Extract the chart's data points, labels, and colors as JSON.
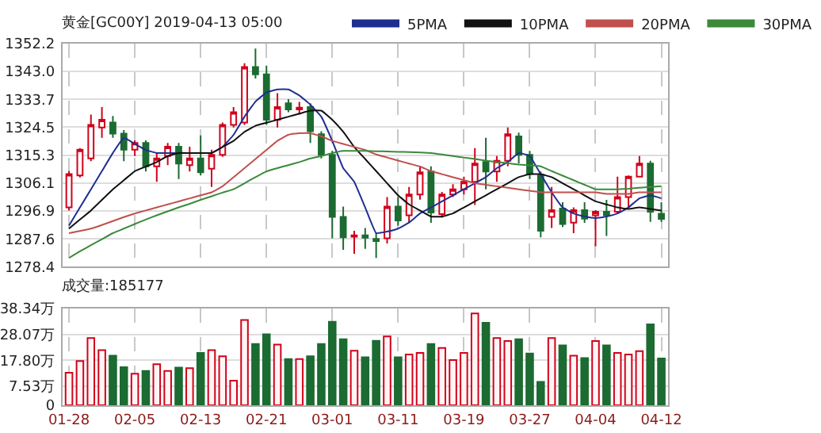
{
  "chart_data": [
    {
      "type": "candlestick",
      "title": "黄金[GC00Y] 2019-04-13 05:00",
      "categories": [
        null,
        null,
        null,
        null,
        null,
        null,
        null,
        null,
        null,
        null,
        null,
        null,
        null,
        null,
        null,
        null,
        null,
        null,
        null,
        null,
        null,
        null,
        null,
        null,
        null,
        null,
        null,
        null,
        null,
        null,
        null,
        null,
        null,
        null,
        null,
        null,
        null,
        null,
        null,
        null,
        null,
        null,
        null,
        null,
        null,
        null,
        null,
        null,
        null,
        null,
        null,
        null,
        null,
        null,
        null
      ],
      "ohlc": [
        [
          1298,
          1310,
          1297,
          1309
        ],
        [
          1308.6,
          1317.6,
          1307.9,
          1317.1
        ],
        [
          1314.2,
          1328.7,
          1313.3,
          1325.3
        ],
        [
          1324.4,
          1331.2,
          1321,
          1327
        ],
        [
          1326.1,
          1328.2,
          1321,
          1322.4
        ],
        [
          1322.4,
          1323.6,
          1313.3,
          1317.1
        ],
        [
          1317.1,
          1320.2,
          1315,
          1319.3
        ],
        [
          1319.3,
          1320.2,
          1309.9,
          1311.6
        ],
        [
          1311.6,
          1315.9,
          1306.5,
          1314.2
        ],
        [
          1315,
          1319.3,
          1312,
          1318.1
        ],
        [
          1318.1,
          1319.3,
          1307.4,
          1312.5
        ],
        [
          1312,
          1318.1,
          1309.9,
          1314.2
        ],
        [
          1314.2,
          1321.8,
          1308.6,
          1309.6
        ],
        [
          1310.8,
          1317.1,
          1304.8,
          1315.4
        ],
        [
          1315.4,
          1326.1,
          1314.7,
          1325.3
        ],
        [
          1325.3,
          1331.2,
          1324.4,
          1329.5
        ],
        [
          1326.1,
          1345.7,
          1325.3,
          1344.4
        ],
        [
          1344.4,
          1350.5,
          1340.6,
          1342
        ],
        [
          1342,
          1344.9,
          1325.3,
          1327
        ],
        [
          1327,
          1335.8,
          1324.4,
          1331.2
        ],
        [
          1332.4,
          1333.8,
          1329.5,
          1330.4
        ],
        [
          1330.4,
          1332.9,
          1328.7,
          1331
        ],
        [
          1331.2,
          1332.4,
          1319.3,
          1323.2
        ],
        [
          1322.2,
          1323.2,
          1314.2,
          1315.4
        ],
        [
          1315.4,
          1316.7,
          1287.8,
          1294.9
        ],
        [
          1294.9,
          1298.3,
          1284,
          1288.1
        ],
        [
          1288.3,
          1290.3,
          1282.7,
          1288.8
        ],
        [
          1288.8,
          1291.2,
          1284.3,
          1288
        ],
        [
          1287.6,
          1289.5,
          1281.3,
          1286.9
        ],
        [
          1287.8,
          1301.4,
          1286.1,
          1298.3
        ],
        [
          1298.3,
          1301.4,
          1292,
          1293.7
        ],
        [
          1295.4,
          1304.8,
          1292.9,
          1302.3
        ],
        [
          1302.3,
          1311.6,
          1300.6,
          1309.6
        ],
        [
          1309.9,
          1311.6,
          1292.9,
          1296.3
        ],
        [
          1295.8,
          1303.1,
          1294.6,
          1302.3
        ],
        [
          1302.3,
          1305.7,
          1301.4,
          1304
        ],
        [
          1304,
          1308.2,
          1302.3,
          1306.5
        ],
        [
          1306.5,
          1317.6,
          1298.8,
          1312.5
        ],
        [
          1313,
          1321,
          1304,
          1309.9
        ],
        [
          1309.9,
          1315,
          1306.5,
          1313.4
        ],
        [
          1313.4,
          1324.4,
          1311.6,
          1322.2
        ],
        [
          1321.5,
          1322.7,
          1312.5,
          1315.4
        ],
        [
          1315.4,
          1316.7,
          1307.4,
          1309.1
        ],
        [
          1308.6,
          1309.9,
          1288.1,
          1290.3
        ],
        [
          1294.9,
          1304.8,
          1291.2,
          1297.1
        ],
        [
          1297.6,
          1299.7,
          1291.5,
          1292.5
        ],
        [
          1293,
          1298,
          1289.5,
          1297.1
        ],
        [
          1297.1,
          1299.7,
          1292.9,
          1294.3
        ],
        [
          1295.4,
          1297.1,
          1285.2,
          1296.6
        ],
        [
          1296.6,
          1300.5,
          1288.6,
          1295.4
        ],
        [
          1296.6,
          1308.2,
          1295.9,
          1301.4
        ],
        [
          1301.4,
          1308.6,
          1298,
          1308.2
        ],
        [
          1308.2,
          1315,
          1307.9,
          1312.5
        ],
        [
          1312.5,
          1313.4,
          1293.2,
          1296.6
        ],
        [
          1295.9,
          1299.7,
          1293.2,
          1294.2
        ]
      ],
      "colors": [
        "#d0021b",
        "#d0021b",
        "#d0021b",
        "#d0021b",
        "#1c6b32",
        "#1c6b32",
        "#d0021b",
        "#1c6b32",
        "#d0021b",
        "#d0021b",
        "#1c6b32",
        "#d0021b",
        "#1c6b32",
        "#d0021b",
        "#d0021b",
        "#d0021b",
        "#d0021b",
        "#1c6b32",
        "#1c6b32",
        "#d0021b",
        "#1c6b32",
        "#d0021b",
        "#1c6b32",
        "#1c6b32",
        "#1c6b32",
        "#1c6b32",
        "#d0021b",
        "#1c6b32",
        "#1c6b32",
        "#d0021b",
        "#1c6b32",
        "#d0021b",
        "#d0021b",
        "#1c6b32",
        "#d0021b",
        "#d0021b",
        "#d0021b",
        "#d0021b",
        "#1c6b32",
        "#d0021b",
        "#d0021b",
        "#1c6b32",
        "#1c6b32",
        "#1c6b32",
        "#d0021b",
        "#1c6b32",
        "#d0021b",
        "#1c6b32",
        "#d0021b",
        "#1c6b32",
        "#d0021b",
        "#d0021b",
        "#d0021b",
        "#1c6b32",
        "#1c6b32"
      ],
      "series": [
        {
          "type": "line",
          "name": "5PMA",
          "color": "#1f2f8f",
          "values": [
            1292,
            1298,
            1304,
            1310,
            1316,
            1321,
            1319,
            1317,
            1316,
            1316,
            1316,
            1316,
            1316,
            1316,
            1318,
            1322,
            1328,
            1333,
            1336,
            1337,
            1337,
            1335,
            1332,
            1328,
            1320,
            1311,
            1306.5,
            1298,
            1289.5,
            1290,
            1291,
            1293,
            1296,
            1298,
            1300,
            1302,
            1304,
            1306,
            1308,
            1311,
            1313,
            1316,
            1315,
            1309,
            1303,
            1298,
            1296,
            1295,
            1294.5,
            1295,
            1296,
            1298,
            1301,
            1302,
            1301
          ]
        },
        {
          "type": "line",
          "name": "10PMA",
          "color": "#111111",
          "values": [
            1291,
            1294,
            1297,
            1300.5,
            1304,
            1307,
            1310,
            1311.5,
            1313,
            1315,
            1316,
            1316,
            1316,
            1316,
            1318,
            1320,
            1323,
            1325,
            1326,
            1327,
            1328,
            1329,
            1330,
            1330,
            1327,
            1323,
            1318,
            1314,
            1310,
            1306,
            1302,
            1299,
            1297,
            1295,
            1295,
            1296,
            1298,
            1300,
            1302,
            1304,
            1306,
            1308,
            1309,
            1309,
            1308,
            1306,
            1304,
            1302,
            1300,
            1299,
            1298,
            1297.5,
            1298,
            1297.5,
            1297
          ]
        },
        {
          "type": "line",
          "name": "20PMA",
          "color": "#c0504d",
          "values": [
            1289.5,
            1290.2,
            1291,
            1292.2,
            1293.5,
            1294.8,
            1296,
            1297,
            1298,
            1299,
            1300,
            1301,
            1302,
            1303,
            1305,
            1308,
            1311,
            1314,
            1317,
            1320,
            1322,
            1322.5,
            1322.5,
            1321.5,
            1320,
            1319,
            1318,
            1317,
            1315.5,
            1314.5,
            1313.5,
            1312.5,
            1311.5,
            1310,
            1309,
            1308,
            1307,
            1306,
            1305.5,
            1305,
            1304.5,
            1304,
            1303.5,
            1303,
            1303,
            1303,
            1303,
            1303,
            1303,
            1302.5,
            1302.5,
            1302.5,
            1303,
            1303,
            1303
          ]
        },
        {
          "type": "line",
          "name": "30PMA",
          "color": "#3a8a3a",
          "values": [
            1281.3,
            1283.5,
            1285.5,
            1287.5,
            1289.5,
            1291,
            1292.5,
            1294,
            1295.4,
            1296.7,
            1298,
            1299.2,
            1300.5,
            1301.7,
            1302.9,
            1304,
            1306,
            1308,
            1309.9,
            1311,
            1312,
            1313,
            1314.2,
            1315,
            1316,
            1316.7,
            1316.7,
            1316.7,
            1316.6,
            1316.5,
            1316.4,
            1316.3,
            1316.2,
            1316,
            1315.5,
            1315,
            1314.5,
            1314,
            1313.5,
            1313,
            1312.6,
            1312.2,
            1311.9,
            1311.6,
            1310,
            1308.5,
            1307,
            1305.5,
            1304,
            1304,
            1304,
            1304.2,
            1304.5,
            1304.8,
            1305
          ]
        }
      ],
      "ylim": [
        1278.4,
        1352.2
      ],
      "yticks": [
        1278.4,
        1287.6,
        1296.9,
        1306.1,
        1315.3,
        1324.5,
        1333.7,
        {
          "value": 1343,
          "label": "1343.0"
        },
        1352.2
      ],
      "grid": true,
      "legend": "top",
      "tick_labels": "y"
    },
    {
      "type": "bar",
      "title": "成交量:185177",
      "categories": [
        "01-28",
        null,
        null,
        null,
        null,
        null,
        "02-05",
        null,
        null,
        null,
        null,
        null,
        "02-13",
        null,
        null,
        null,
        null,
        null,
        "02-21",
        null,
        null,
        null,
        null,
        null,
        "03-01",
        null,
        null,
        null,
        null,
        null,
        "03-11",
        null,
        null,
        null,
        null,
        null,
        "03-19",
        null,
        null,
        null,
        null,
        null,
        "03-27",
        null,
        null,
        null,
        null,
        null,
        "04-04",
        null,
        null,
        null,
        null,
        null,
        "04-12"
      ],
      "values": [
        12.9,
        17.5,
        26.6,
        21.8,
        19.6,
        15.1,
        12.5,
        13.6,
        16.2,
        13.6,
        14.9,
        14.7,
        20.7,
        21.8,
        19.4,
        9.7,
        33.7,
        24.2,
        28.1,
        24.0,
        18.3,
        18.3,
        19.4,
        24.2,
        33.0,
        26.1,
        21.6,
        19.0,
        25.5,
        27.2,
        19.0,
        20.1,
        20.7,
        24.2,
        22.7,
        17.9,
        20.7,
        36.3,
        32.6,
        26.6,
        25.4,
        26.1,
        20.5,
        9.3,
        26.6,
        23.7,
        19.6,
        18.7,
        25.4,
        23.7,
        20.7,
        20.1,
        21.4,
        32.0,
        18.5
      ],
      "colors": [
        "#d0021b",
        "#d0021b",
        "#d0021b",
        "#d0021b",
        "#1c6b32",
        "#1c6b32",
        "#d0021b",
        "#1c6b32",
        "#d0021b",
        "#d0021b",
        "#1c6b32",
        "#d0021b",
        "#1c6b32",
        "#d0021b",
        "#d0021b",
        "#d0021b",
        "#d0021b",
        "#1c6b32",
        "#1c6b32",
        "#d0021b",
        "#1c6b32",
        "#d0021b",
        "#1c6b32",
        "#1c6b32",
        "#1c6b32",
        "#1c6b32",
        "#d0021b",
        "#1c6b32",
        "#1c6b32",
        "#d0021b",
        "#1c6b32",
        "#d0021b",
        "#d0021b",
        "#1c6b32",
        "#d0021b",
        "#d0021b",
        "#d0021b",
        "#d0021b",
        "#1c6b32",
        "#d0021b",
        "#d0021b",
        "#1c6b32",
        "#1c6b32",
        "#1c6b32",
        "#d0021b",
        "#1c6b32",
        "#d0021b",
        "#1c6b32",
        "#d0021b",
        "#1c6b32",
        "#d0021b",
        "#d0021b",
        "#d0021b",
        "#1c6b32",
        "#1c6b32"
      ],
      "ylim": [
        0,
        38.34
      ],
      "yticks": [
        0,
        {
          "value": 7.53,
          "label": "7.53万"
        },
        {
          "value": 17.8,
          "label": "17.80万"
        },
        {
          "value": 28.07,
          "label": "28.07万"
        },
        {
          "value": 38.34,
          "label": "38.34万"
        }
      ],
      "grid": true
    }
  ]
}
